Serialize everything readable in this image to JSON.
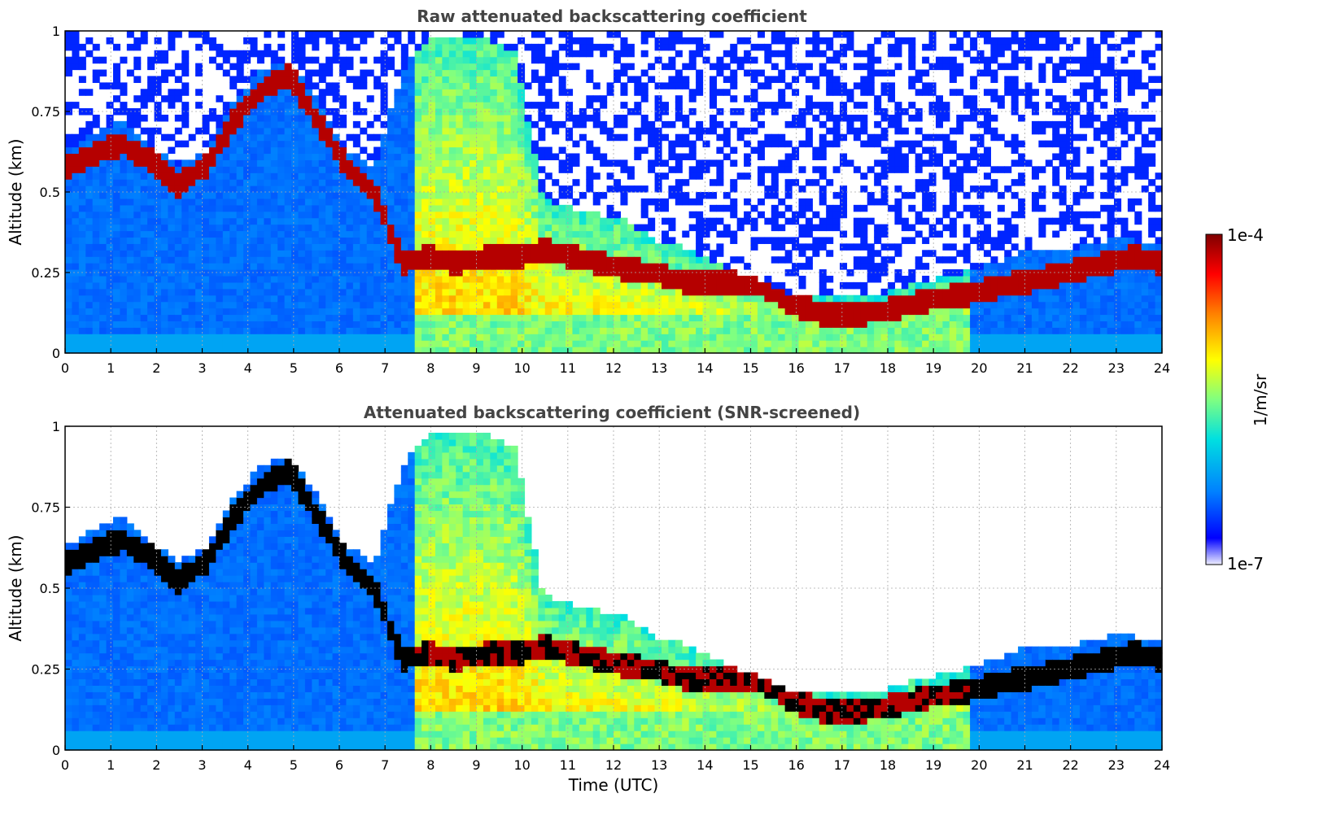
{
  "chart_data": [
    {
      "type": "heatmap",
      "title": "Raw attenuated backscattering coefficient",
      "xlabel": "",
      "ylabel": "Altitude (km)",
      "xlim": [
        0,
        24
      ],
      "ylim": [
        0,
        1
      ],
      "xticks": [
        "0",
        "1",
        "2",
        "3",
        "4",
        "5",
        "6",
        "7",
        "8",
        "9",
        "10",
        "11",
        "12",
        "13",
        "14",
        "15",
        "16",
        "17",
        "18",
        "19",
        "20",
        "21",
        "22",
        "23",
        "24"
      ],
      "yticks": [
        "0",
        "0.25",
        "0.5",
        "0.75",
        "1"
      ],
      "grid": true,
      "snr_screened": false,
      "layer_top_km": [
        0.6,
        0.65,
        0.7,
        0.62,
        0.55,
        0.6,
        0.75,
        0.85,
        0.88,
        0.75,
        0.6,
        0.55,
        0.85,
        0.95,
        0.95,
        0.95,
        0.9,
        0.45,
        0.42,
        0.4,
        0.38,
        0.32,
        0.3,
        0.25,
        0.22,
        0.18,
        0.15,
        0.14,
        0.14,
        0.15,
        0.18,
        0.2,
        0.22,
        0.25,
        0.28,
        0.3,
        0.3,
        0.32,
        0.32,
        0.3
      ],
      "layer_peak_km": [
        0.58,
        0.62,
        0.65,
        0.6,
        0.52,
        0.58,
        0.72,
        0.82,
        0.86,
        0.72,
        0.58,
        0.5,
        0.28,
        0.3,
        0.28,
        0.3,
        0.3,
        0.32,
        0.3,
        0.28,
        0.26,
        0.25,
        0.22,
        0.22,
        0.22,
        0.2,
        0.15,
        0.12,
        0.12,
        0.13,
        0.15,
        0.17,
        0.18,
        0.2,
        0.22,
        0.24,
        0.26,
        0.28,
        0.3,
        0.28
      ]
    },
    {
      "type": "heatmap",
      "title": "Attenuated backscattering coefficient (SNR-screened)",
      "xlabel": "Time (UTC)",
      "ylabel": "Altitude (km)",
      "xlim": [
        0,
        24
      ],
      "ylim": [
        0,
        1
      ],
      "xticks": [
        "0",
        "1",
        "2",
        "3",
        "4",
        "5",
        "6",
        "7",
        "8",
        "9",
        "10",
        "11",
        "12",
        "13",
        "14",
        "15",
        "16",
        "17",
        "18",
        "19",
        "20",
        "21",
        "22",
        "23",
        "24"
      ],
      "yticks": [
        "0",
        "0.25",
        "0.5",
        "0.75",
        "1"
      ],
      "grid": true,
      "snr_screened": true,
      "layer_top_km": [
        0.6,
        0.65,
        0.7,
        0.62,
        0.55,
        0.6,
        0.75,
        0.85,
        0.88,
        0.75,
        0.6,
        0.55,
        0.85,
        0.95,
        0.95,
        0.95,
        0.9,
        0.45,
        0.42,
        0.4,
        0.38,
        0.32,
        0.3,
        0.25,
        0.22,
        0.18,
        0.15,
        0.14,
        0.14,
        0.15,
        0.18,
        0.2,
        0.22,
        0.25,
        0.28,
        0.3,
        0.3,
        0.32,
        0.32,
        0.3
      ],
      "layer_peak_km": [
        0.58,
        0.62,
        0.65,
        0.6,
        0.52,
        0.58,
        0.72,
        0.82,
        0.86,
        0.72,
        0.58,
        0.5,
        0.28,
        0.3,
        0.28,
        0.3,
        0.3,
        0.32,
        0.3,
        0.28,
        0.26,
        0.25,
        0.22,
        0.22,
        0.22,
        0.2,
        0.15,
        0.12,
        0.12,
        0.13,
        0.15,
        0.17,
        0.18,
        0.2,
        0.22,
        0.24,
        0.26,
        0.28,
        0.3,
        0.28
      ]
    }
  ],
  "colorbar": {
    "max_label": "1e-4",
    "min_label": "1e-7",
    "unit_label": "1/m/sr",
    "colors": [
      "#eeeeff",
      "#0000ff",
      "#0080ff",
      "#00e0e0",
      "#80ff80",
      "#ffff00",
      "#ff8000",
      "#ff0000",
      "#800000"
    ]
  }
}
